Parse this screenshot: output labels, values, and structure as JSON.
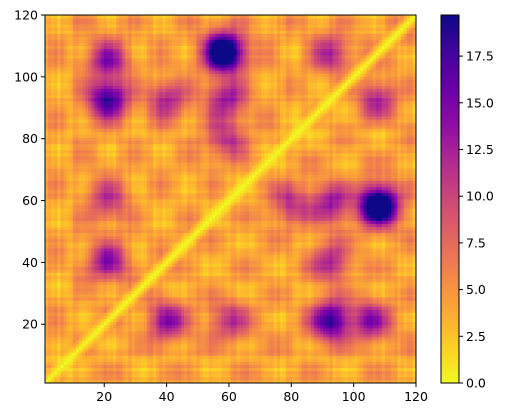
{
  "chart_data": {
    "type": "heatmap",
    "title": "",
    "xlabel": "",
    "ylabel": "",
    "colormap": "plasma_r",
    "n": 120,
    "xlim": [
      1,
      120
    ],
    "ylim": [
      1,
      120
    ],
    "x_ticks": [
      "20",
      "40",
      "60",
      "80",
      "100",
      "120"
    ],
    "y_ticks": [
      "20",
      "40",
      "60",
      "80",
      "100",
      "120"
    ],
    "colorbar": {
      "vmin": 0.0,
      "vmax": 19.7,
      "ticks": [
        "0.0",
        "2.5",
        "5.0",
        "7.5",
        "10.0",
        "12.5",
        "15.0",
        "17.5"
      ]
    },
    "structure": {
      "diagonal_value": 0.0,
      "hotspots": [
        {
          "i": 21,
          "j": 93,
          "value": 19.5
        },
        {
          "i": 21,
          "j": 40,
          "value": 15.0
        },
        {
          "i": 59,
          "j": 108,
          "value": 16.5
        },
        {
          "i": 58,
          "j": 109,
          "value": 16.0
        },
        {
          "i": 21,
          "j": 106,
          "value": 14.5
        },
        {
          "i": 59,
          "j": 93,
          "value": 14.5
        },
        {
          "i": 40,
          "j": 93,
          "value": 13.5
        },
        {
          "i": 93,
          "j": 108,
          "value": 13.0
        },
        {
          "i": 59,
          "j": 80,
          "value": 12.5
        },
        {
          "i": 21,
          "j": 60,
          "value": 12.5
        }
      ]
    }
  }
}
